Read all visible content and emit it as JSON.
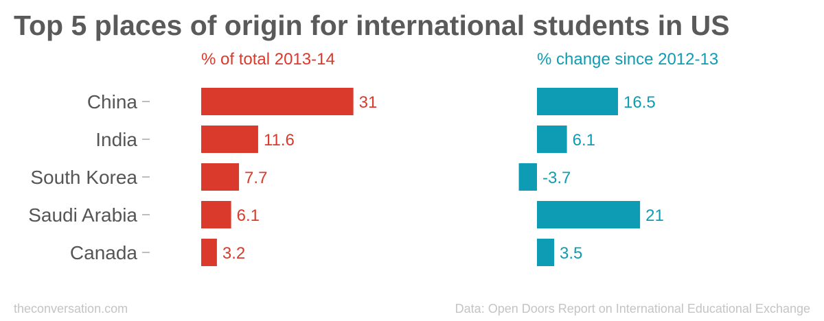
{
  "title": "Top 5 places of origin for international students in US",
  "footer": {
    "source_site": "theconversation.com",
    "data_source": "Data: Open Doors Report on International Educational Exchange"
  },
  "colors": {
    "share": "#d93a2b",
    "change": "#0e9cb4",
    "category_text": "#555555",
    "title_text": "#5a5a5a",
    "footer_text": "#c4c4c4"
  },
  "chart_data": [
    {
      "type": "bar",
      "orientation": "horizontal",
      "title": "% of total 2013-14",
      "categories": [
        "China",
        "India",
        "South Korea",
        "Saudi Arabia",
        "Canada"
      ],
      "values": [
        31,
        11.6,
        7.7,
        6.1,
        3.2
      ],
      "value_labels": [
        "31",
        "11.6",
        "7.7",
        "6.1",
        "3.2"
      ],
      "xlim": [
        0,
        31
      ],
      "grid": false
    },
    {
      "type": "bar",
      "orientation": "horizontal",
      "title": "% change since 2012-13",
      "categories": [
        "China",
        "India",
        "South Korea",
        "Saudi Arabia",
        "Canada"
      ],
      "values": [
        16.5,
        6.1,
        -3.7,
        21,
        3.5
      ],
      "value_labels": [
        "16.5",
        "6.1",
        "-3.7",
        "21",
        "3.5"
      ],
      "grid": false
    }
  ]
}
